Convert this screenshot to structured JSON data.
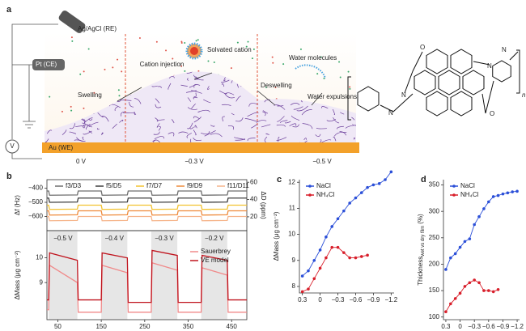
{
  "panel_a": {
    "label": "a",
    "electrodes": [
      "Ag/AgCl (RE)",
      "Pt (CE)",
      "Au (WE)"
    ],
    "meter": "V",
    "potentials": [
      "0 V",
      "−0.3 V",
      "−0.5 V"
    ],
    "annotations": [
      "Swelling",
      "Cation injection",
      "Solvated cation",
      "Deswelling",
      "Water molecules",
      "Water expulsions"
    ],
    "structure_atoms": [
      "O",
      "O",
      "N",
      "N",
      "N",
      "N",
      "n"
    ]
  },
  "chart_data": [
    {
      "type": "line",
      "panel": "b",
      "ylabel": "Δf (Hz)",
      "y2label": "ΔD (ppm)",
      "x": [
        25,
        29,
        31,
        95,
        97,
        150,
        152,
        210,
        212,
        265,
        267,
        325,
        327,
        380,
        382,
        440,
        442,
        485
      ],
      "xlim": [
        25,
        485
      ],
      "ylim": [
        -700,
        -340
      ],
      "yticks": [
        {
          "value": -400,
          "label": "−400"
        },
        {
          "value": -500,
          "label": "−500"
        },
        {
          "value": -600,
          "label": "−600"
        }
      ],
      "y2lim": [
        4,
        63
      ],
      "y2ticks": [
        20,
        40,
        60
      ],
      "series": [
        {
          "name": "f3/D3",
          "color": "#6e6e6e",
          "values": [
            -420,
            -420,
            -450,
            -448,
            -420,
            -420,
            -450,
            -448,
            -420,
            -420,
            -450,
            -448,
            -420,
            -420,
            -450,
            -448,
            -420,
            -420
          ]
        },
        {
          "name": "f5/D5",
          "color": "#3d3d3d",
          "values": [
            -470,
            -470,
            -500,
            -498,
            -470,
            -470,
            -500,
            -498,
            -470,
            -470,
            -500,
            -498,
            -470,
            -470,
            -500,
            -498,
            -470,
            -470
          ]
        },
        {
          "name": "f7/D7",
          "color": "#f2c230",
          "values": [
            -520,
            -520,
            -550,
            -548,
            -520,
            -520,
            -550,
            -548,
            -520,
            -520,
            -550,
            -548,
            -520,
            -520,
            -550,
            -548,
            -520,
            -520
          ]
        },
        {
          "name": "f9/D9",
          "color": "#ee8a3a",
          "values": [
            -560,
            -560,
            -590,
            -588,
            -560,
            -560,
            -590,
            -588,
            -560,
            -560,
            -590,
            -588,
            -560,
            -560,
            -590,
            -588,
            -560,
            -560
          ]
        },
        {
          "name": "f11/D11",
          "color": "#f6b48a",
          "values": [
            -600,
            -600,
            -630,
            -628,
            -600,
            -600,
            -630,
            -628,
            -600,
            -600,
            -630,
            -628,
            -600,
            -600,
            -630,
            -628,
            -600,
            -600
          ]
        }
      ]
    },
    {
      "type": "line",
      "ylabel": "ΔMass (μg cm⁻²)",
      "x": [
        25,
        29,
        31,
        95,
        97,
        150,
        152,
        210,
        212,
        265,
        267,
        325,
        327,
        380,
        382,
        440,
        442,
        485
      ],
      "xlim": [
        25,
        485
      ],
      "xticks": [
        50,
        150,
        250,
        350,
        450
      ],
      "ylim": [
        7.5,
        11.1
      ],
      "yticks": [
        9,
        10
      ],
      "shaded": [
        [
          29,
          95
        ],
        [
          150,
          210
        ],
        [
          265,
          325
        ],
        [
          380,
          440
        ]
      ],
      "shaded_labels": [
        "−0.5 V",
        "−0.4 V",
        "−0.3 V",
        "−0.2 V"
      ],
      "series": [
        {
          "name": "Sauerbrey",
          "color": "#f08a8a",
          "values": [
            7.9,
            7.9,
            9.7,
            9.0,
            7.8,
            7.8,
            9.7,
            9.4,
            7.8,
            7.8,
            9.8,
            9.5,
            7.8,
            7.8,
            9.6,
            9.3,
            7.8,
            7.8
          ]
        },
        {
          "name": "VE model",
          "color": "#c0141e",
          "values": [
            8.3,
            8.3,
            10.2,
            9.9,
            8.3,
            8.3,
            10.2,
            10.0,
            8.2,
            8.2,
            10.3,
            10.1,
            8.2,
            8.2,
            10.1,
            9.9,
            8.3,
            8.3
          ]
        }
      ]
    },
    {
      "type": "line",
      "panel": "c",
      "ylabel": "ΔMass (μg cm⁻²)",
      "markers": true,
      "xlim": [
        0.35,
        -1.25
      ],
      "xticks": [
        0.3,
        0,
        {
          "value": -0.3,
          "label": "−0.3"
        },
        {
          "value": -0.6,
          "label": "−0.6"
        },
        {
          "value": -0.9,
          "label": "−0.9"
        },
        {
          "value": -1.2,
          "label": "−1.2"
        }
      ],
      "ylim": [
        7.75,
        12.1
      ],
      "yticks": [
        8,
        9,
        10,
        11,
        12
      ],
      "series": [
        {
          "name": "NaCl",
          "color": "#2b4fd8",
          "x": [
            0.3,
            0.2,
            0.1,
            0,
            -0.1,
            -0.2,
            -0.3,
            -0.4,
            -0.5,
            -0.6,
            -0.7,
            -0.8,
            -0.9,
            -1.0,
            -1.1,
            -1.2
          ],
          "values": [
            8.4,
            8.6,
            9.0,
            9.4,
            9.9,
            10.3,
            10.6,
            10.9,
            11.2,
            11.4,
            11.6,
            11.8,
            11.9,
            11.95,
            12.1,
            12.4
          ]
        },
        {
          "name": "NH₄Cl",
          "color": "#d81e2a",
          "x": [
            0.3,
            0.2,
            0.1,
            0,
            -0.1,
            -0.2,
            -0.3,
            -0.4,
            -0.5,
            -0.6,
            -0.7,
            -0.8
          ],
          "values": [
            7.8,
            7.9,
            8.3,
            8.7,
            9.1,
            9.5,
            9.5,
            9.3,
            9.1,
            9.1,
            9.15,
            9.2
          ]
        }
      ]
    },
    {
      "type": "line",
      "panel": "d",
      "ylabel": "Thickness",
      "ylabel_sub": "wet vs dry film",
      "ylabel_unit": "(%)",
      "markers": true,
      "xlim": [
        0.35,
        -1.25
      ],
      "xticks": [
        0.3,
        0,
        {
          "value": -0.3,
          "label": "−0.3"
        },
        {
          "value": -0.6,
          "label": "−0.6"
        },
        {
          "value": -0.9,
          "label": "−0.9"
        },
        {
          "value": -1.2,
          "label": "−1.2"
        }
      ],
      "ylim": [
        95,
        360
      ],
      "yticks": [
        100,
        150,
        200,
        250,
        300,
        350
      ],
      "series": [
        {
          "name": "NaCl",
          "color": "#2b4fd8",
          "x": [
            0.3,
            0.2,
            0.1,
            0,
            -0.1,
            -0.2,
            -0.3,
            -0.4,
            -0.5,
            -0.6,
            -0.7,
            -0.8,
            -0.9,
            -1.0,
            -1.1,
            -1.2
          ],
          "values": [
            190,
            212,
            220,
            232,
            243,
            248,
            275,
            290,
            305,
            318,
            328,
            330,
            333,
            335,
            337,
            338
          ]
        },
        {
          "name": "NH₄Cl",
          "color": "#d81e2a",
          "x": [
            0.3,
            0.2,
            0.1,
            0,
            -0.1,
            -0.2,
            -0.3,
            -0.4,
            -0.5,
            -0.6,
            -0.7,
            -0.8
          ],
          "values": [
            110,
            125,
            135,
            145,
            158,
            165,
            170,
            165,
            150,
            150,
            148,
            152
          ]
        }
      ]
    }
  ]
}
